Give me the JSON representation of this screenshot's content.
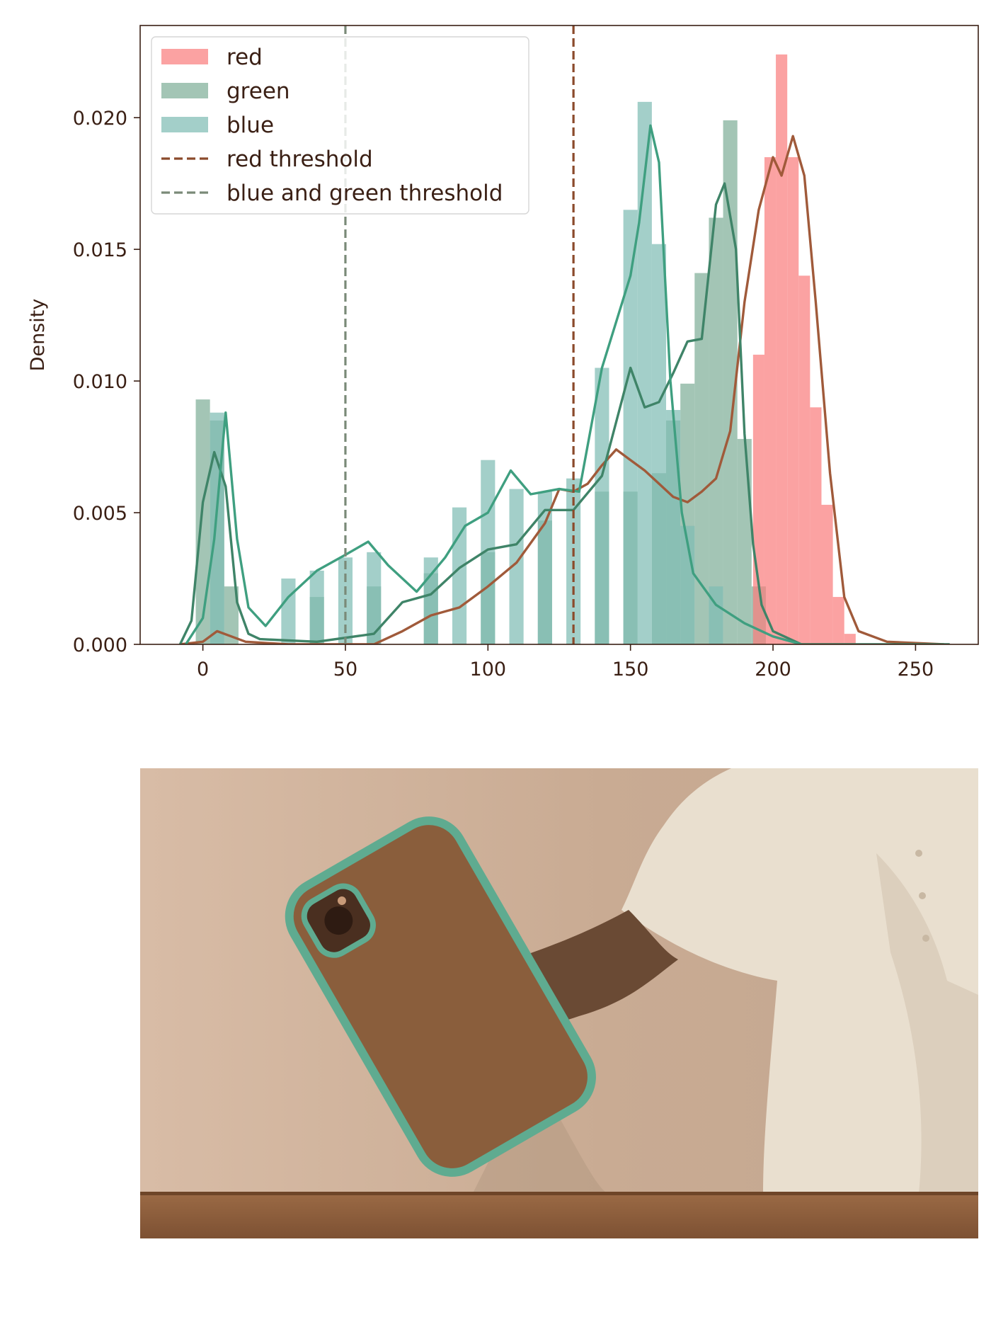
{
  "chart_data": {
    "type": "bar",
    "ylabel": "Density",
    "xlabel": "",
    "xlim": [
      -22,
      272
    ],
    "ylim": [
      0,
      0.0235
    ],
    "x_ticks": [
      0,
      50,
      100,
      150,
      200,
      250
    ],
    "y_ticks": [
      0.0,
      0.005,
      0.01,
      0.015,
      0.02
    ],
    "y_tick_labels": [
      "0.000",
      "0.005",
      "0.010",
      "0.015",
      "0.020"
    ],
    "legend_position": "top-left",
    "series": [
      {
        "name": "red",
        "kind": "histogram",
        "color": "#fa7e7e",
        "bins": [
          [
            195,
            0.011
          ],
          [
            199,
            0.0185
          ],
          [
            203,
            0.0224
          ],
          [
            207,
            0.0185
          ],
          [
            211,
            0.014
          ],
          [
            215,
            0.009
          ],
          [
            219,
            0.0053
          ],
          [
            223,
            0.0018
          ],
          [
            227,
            0.0004
          ]
        ]
      },
      {
        "name": "green",
        "kind": "histogram",
        "color": "#7fae98",
        "bins": [
          [
            0,
            0.0093
          ],
          [
            5,
            0.0085
          ],
          [
            10,
            0.0022
          ],
          [
            40,
            0.0018
          ],
          [
            60,
            0.0022
          ],
          [
            80,
            0.0027
          ],
          [
            100,
            0.0035
          ],
          [
            120,
            0.0047
          ],
          [
            140,
            0.0058
          ],
          [
            150,
            0.0058
          ],
          [
            160,
            0.0065
          ],
          [
            165,
            0.0085
          ],
          [
            170,
            0.0099
          ],
          [
            175,
            0.0141
          ],
          [
            180,
            0.0162
          ],
          [
            185,
            0.0199
          ],
          [
            190,
            0.0078
          ],
          [
            195,
            0.0022
          ]
        ]
      },
      {
        "name": "blue",
        "kind": "histogram",
        "color": "#7fbcb4",
        "bins": [
          [
            5,
            0.0088
          ],
          [
            30,
            0.0025
          ],
          [
            40,
            0.0028
          ],
          [
            50,
            0.0033
          ],
          [
            60,
            0.0035
          ],
          [
            80,
            0.0033
          ],
          [
            90,
            0.0052
          ],
          [
            100,
            0.007
          ],
          [
            110,
            0.0059
          ],
          [
            120,
            0.0058
          ],
          [
            130,
            0.0063
          ],
          [
            140,
            0.0105
          ],
          [
            150,
            0.0165
          ],
          [
            155,
            0.0206
          ],
          [
            160,
            0.0152
          ],
          [
            165,
            0.0089
          ],
          [
            170,
            0.0045
          ],
          [
            180,
            0.0022
          ]
        ]
      },
      {
        "name": "red threshold",
        "kind": "vline",
        "x": 130,
        "color": "#8b4a2b"
      },
      {
        "name": "blue and green threshold",
        "kind": "vline",
        "x": 50,
        "color": "#7a8a78"
      }
    ],
    "kde": [
      {
        "series": "red",
        "color": "#a05a3a",
        "points": [
          [
            -8,
            0
          ],
          [
            0,
            0.0001
          ],
          [
            5,
            0.0005
          ],
          [
            10,
            0.0003
          ],
          [
            15,
            0.0001
          ],
          [
            30,
            0
          ],
          [
            50,
            0
          ],
          [
            60,
            0
          ],
          [
            70,
            0.0005
          ],
          [
            80,
            0.0011
          ],
          [
            90,
            0.0014
          ],
          [
            100,
            0.0022
          ],
          [
            110,
            0.0031
          ],
          [
            120,
            0.0046
          ],
          [
            125,
            0.0059
          ],
          [
            130,
            0.0058
          ],
          [
            135,
            0.0061
          ],
          [
            140,
            0.0068
          ],
          [
            145,
            0.0074
          ],
          [
            150,
            0.007
          ],
          [
            155,
            0.0066
          ],
          [
            160,
            0.0061
          ],
          [
            165,
            0.0056
          ],
          [
            170,
            0.0054
          ],
          [
            175,
            0.0058
          ],
          [
            180,
            0.0063
          ],
          [
            185,
            0.0081
          ],
          [
            190,
            0.013
          ],
          [
            195,
            0.0165
          ],
          [
            200,
            0.0185
          ],
          [
            203,
            0.0178
          ],
          [
            207,
            0.0193
          ],
          [
            211,
            0.0178
          ],
          [
            215,
            0.013
          ],
          [
            220,
            0.0065
          ],
          [
            225,
            0.0018
          ],
          [
            230,
            0.0005
          ],
          [
            240,
            0.0001
          ],
          [
            260,
            0
          ]
        ]
      },
      {
        "series": "green",
        "color": "#3f8468",
        "points": [
          [
            -8,
            0
          ],
          [
            -4,
            0.0009
          ],
          [
            0,
            0.0054
          ],
          [
            4,
            0.0073
          ],
          [
            8,
            0.006
          ],
          [
            12,
            0.0016
          ],
          [
            16,
            0.0004
          ],
          [
            20,
            0.0002
          ],
          [
            40,
            0.0001
          ],
          [
            60,
            0.0004
          ],
          [
            70,
            0.0016
          ],
          [
            80,
            0.0019
          ],
          [
            90,
            0.0029
          ],
          [
            100,
            0.0036
          ],
          [
            110,
            0.0038
          ],
          [
            120,
            0.0051
          ],
          [
            130,
            0.0051
          ],
          [
            140,
            0.0064
          ],
          [
            150,
            0.0105
          ],
          [
            155,
            0.009
          ],
          [
            160,
            0.0092
          ],
          [
            165,
            0.0103
          ],
          [
            170,
            0.0115
          ],
          [
            175,
            0.0116
          ],
          [
            180,
            0.0167
          ],
          [
            183,
            0.0175
          ],
          [
            187,
            0.015
          ],
          [
            190,
            0.008
          ],
          [
            193,
            0.0038
          ],
          [
            196,
            0.0015
          ],
          [
            200,
            0.0005
          ],
          [
            210,
            0
          ],
          [
            262,
            0
          ]
        ]
      },
      {
        "series": "blue",
        "color": "#3f9f80",
        "points": [
          [
            -6,
            0
          ],
          [
            0,
            0.001
          ],
          [
            4,
            0.004
          ],
          [
            8,
            0.0088
          ],
          [
            12,
            0.004
          ],
          [
            16,
            0.0014
          ],
          [
            22,
            0.0007
          ],
          [
            30,
            0.0018
          ],
          [
            40,
            0.0028
          ],
          [
            50,
            0.0034
          ],
          [
            58,
            0.0039
          ],
          [
            65,
            0.003
          ],
          [
            75,
            0.002
          ],
          [
            85,
            0.0033
          ],
          [
            92,
            0.0045
          ],
          [
            100,
            0.005
          ],
          [
            108,
            0.0066
          ],
          [
            115,
            0.0057
          ],
          [
            125,
            0.0059
          ],
          [
            132,
            0.0058
          ],
          [
            140,
            0.0105
          ],
          [
            150,
            0.014
          ],
          [
            153,
            0.016
          ],
          [
            157,
            0.0197
          ],
          [
            160,
            0.0183
          ],
          [
            164,
            0.01
          ],
          [
            168,
            0.005
          ],
          [
            172,
            0.0027
          ],
          [
            180,
            0.0015
          ],
          [
            190,
            0.0008
          ],
          [
            200,
            0.0003
          ],
          [
            210,
            0
          ]
        ]
      }
    ]
  },
  "photo": {
    "description": ""
  }
}
